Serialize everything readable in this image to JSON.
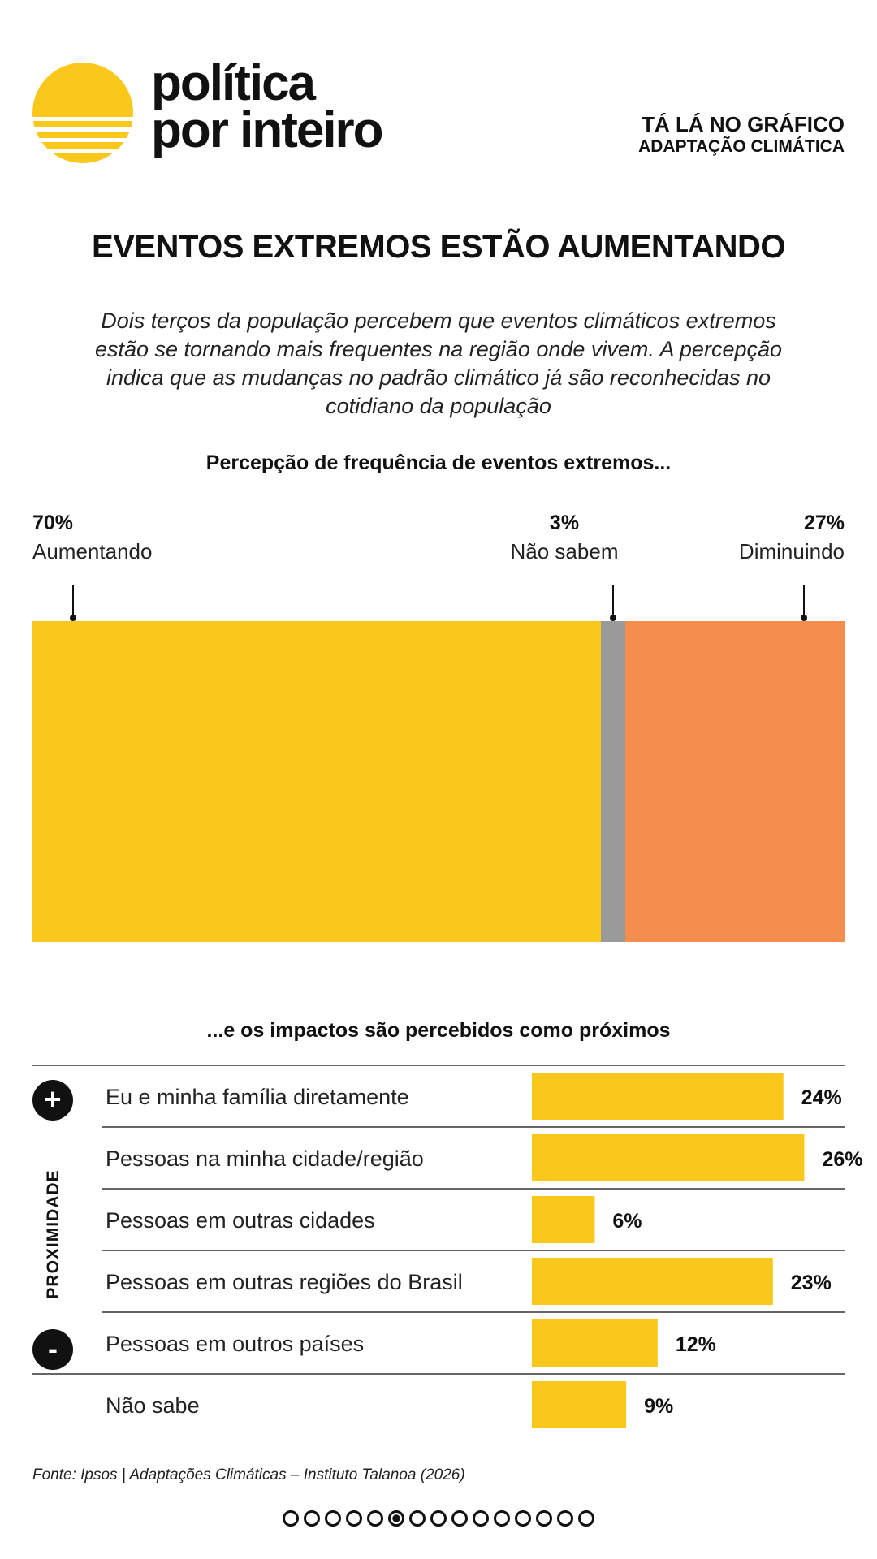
{
  "brand": {
    "line1": "política",
    "line2": "por inteiro"
  },
  "series": {
    "label": "TÁ LÁ NO GRÁFICO",
    "topic": "ADAPTAÇÃO CLIMÁTICA"
  },
  "title": "EVENTOS EXTREMOS ESTÃO AUMENTANDO",
  "subtitle": "Dois terços da população percebem que eventos climáticos extremos estão se tornando mais frequentes na região onde vivem. A percepção indica que as mudanças no padrão climático já são reconhecidas no cotidiano da população",
  "colors": {
    "yellow": "#FAC71B",
    "gray": "#9A9A9A",
    "orange": "#F58D4F",
    "text": "#111111"
  },
  "chart_data": [
    {
      "type": "bar",
      "orientation": "stacked-horizontal",
      "title": "Percepção de frequência de eventos extremos...",
      "categories": [
        "Aumentando",
        "Não sabem",
        "Diminuindo"
      ],
      "values": [
        70,
        3,
        27
      ],
      "labels": [
        "70%",
        "3%",
        "27%"
      ],
      "colors": [
        "#FAC71B",
        "#9A9A9A",
        "#F58D4F"
      ],
      "unit": "%"
    },
    {
      "type": "bar",
      "orientation": "horizontal",
      "title": "...e os impactos são percebidos como próximos",
      "axis_label": "PROXIMIDADE",
      "categories": [
        "Eu e minha família diretamente",
        "Pessoas na minha cidade/região",
        "Pessoas em outras cidades",
        "Pessoas em outras regiões do Brasil",
        "Pessoas em outros países",
        "Não sabe"
      ],
      "values": [
        24,
        26,
        6,
        23,
        12,
        9
      ],
      "labels": [
        "24%",
        "26%",
        "6%",
        "23%",
        "12%",
        "9%"
      ],
      "color": "#FAC71B",
      "unit": "%",
      "xlim": [
        0,
        31
      ]
    }
  ],
  "scale_marks": {
    "more": "+",
    "less": "-"
  },
  "source": "Fonte: Ipsos | Adaptações Climáticas – Instituto Talanoa (2026)",
  "pager": {
    "total": 15,
    "current": 6
  }
}
